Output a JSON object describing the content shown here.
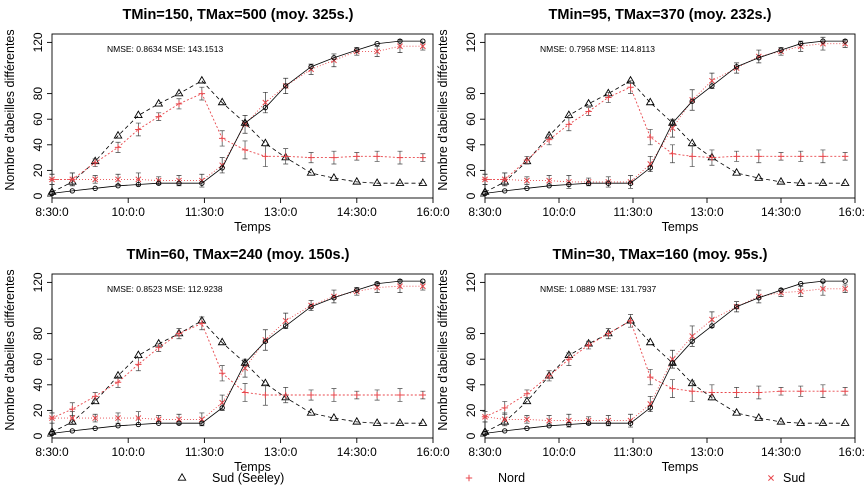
{
  "chart_data": [
    {
      "type": "line",
      "title": "TMin=150, TMax=500 (moy. 325s.)",
      "annotation": "NMSE: 0.8634 MSE: 143.1513",
      "xlabel": "Temps",
      "ylabel": "Nombre d'abeilles différentes",
      "x_ticks": [
        "8:30:0",
        "10:0:0",
        "11:30:0",
        "13:0:0",
        "14:30:0",
        "16:0:0"
      ],
      "y_ticks": [
        "0",
        "20",
        "40",
        "60",
        "80",
        "120"
      ],
      "xlim": [
        8.5,
        16.0
      ],
      "ylim": [
        0,
        125
      ],
      "x": [
        8.5,
        8.9,
        9.35,
        9.8,
        10.2,
        10.6,
        11.0,
        11.45,
        11.85,
        12.3,
        12.7,
        13.1,
        13.6,
        14.05,
        14.5,
        14.9,
        15.35,
        15.8
      ],
      "series": [
        {
          "name": "Sud (Seeley)",
          "marker": "triangle",
          "color": "#000000",
          "values": [
            3,
            11,
            27,
            47,
            63,
            72,
            80,
            90,
            73,
            57,
            41,
            30,
            18,
            14,
            11,
            10,
            10,
            10
          ]
        },
        {
          "name": "Nord",
          "marker": "plus",
          "color": "#e8474c",
          "values": [
            13,
            13,
            26,
            38,
            52,
            62,
            72,
            80,
            45,
            36,
            31,
            31,
            30,
            30,
            31,
            31,
            30,
            30
          ]
        },
        {
          "name": "Sud",
          "marker": "x",
          "color": "#e8474c",
          "values": [
            13,
            13,
            13,
            13,
            13,
            12,
            12,
            12,
            24,
            56,
            73,
            86,
            99,
            106,
            113,
            113,
            117,
            117
          ]
        },
        {
          "name": "",
          "marker": "circle",
          "color": "#000000",
          "values": [
            2,
            4,
            6,
            8,
            9,
            10,
            10,
            10,
            22,
            57,
            69,
            86,
            101,
            108,
            114,
            119,
            121,
            121
          ]
        }
      ]
    },
    {
      "type": "line",
      "title": "TMin=95, TMax=370 (moy. 232s.)",
      "annotation": "NMSE: 0.7958 MSE: 114.8113",
      "xlabel": "Temps",
      "ylabel": "Nombre d'abeilles différentes",
      "x_ticks": [
        "8:30:0",
        "10:0:0",
        "11:30:0",
        "13:0:0",
        "14:30:0",
        "16:0:0"
      ],
      "y_ticks": [
        "0",
        "20",
        "40",
        "60",
        "80",
        "120"
      ],
      "xlim": [
        8.5,
        16.0
      ],
      "ylim": [
        0,
        125
      ],
      "x": [
        8.5,
        8.9,
        9.35,
        9.8,
        10.2,
        10.6,
        11.0,
        11.45,
        11.85,
        12.3,
        12.7,
        13.1,
        13.6,
        14.05,
        14.5,
        14.9,
        15.35,
        15.8
      ],
      "series": [
        {
          "name": "Sud (Seeley)",
          "marker": "triangle",
          "color": "#000000",
          "values": [
            3,
            11,
            27,
            47,
            63,
            72,
            80,
            90,
            73,
            57,
            41,
            30,
            18,
            14,
            11,
            10,
            10,
            10
          ]
        },
        {
          "name": "Nord",
          "marker": "plus",
          "color": "#e8474c",
          "values": [
            13,
            13,
            28,
            44,
            56,
            66,
            77,
            85,
            46,
            33,
            31,
            30,
            31,
            31,
            31,
            31,
            31,
            31
          ]
        },
        {
          "name": "Sud",
          "marker": "x",
          "color": "#e8474c",
          "values": [
            13,
            13,
            12,
            12,
            11,
            11,
            11,
            11,
            25,
            53,
            75,
            90,
            100,
            109,
            113,
            117,
            119,
            119
          ]
        },
        {
          "name": "",
          "marker": "circle",
          "color": "#000000",
          "values": [
            2,
            4,
            6,
            8,
            9,
            10,
            10,
            10,
            22,
            57,
            74,
            86,
            101,
            108,
            114,
            119,
            121,
            121
          ]
        }
      ]
    },
    {
      "type": "line",
      "title": "TMin=60, TMax=240 (moy. 150s.)",
      "annotation": "NMSE: 0.8523 MSE: 112.9238",
      "xlabel": "Temps",
      "ylabel": "Nombre d'abeilles différentes",
      "x_ticks": [
        "8:30:0",
        "10:0:0",
        "11:30:0",
        "13:0:0",
        "14:30:0",
        "16:0:0"
      ],
      "y_ticks": [
        "0",
        "20",
        "40",
        "60",
        "80",
        "120"
      ],
      "xlim": [
        8.5,
        16.0
      ],
      "ylim": [
        0,
        125
      ],
      "x": [
        8.5,
        8.9,
        9.35,
        9.8,
        10.2,
        10.6,
        11.0,
        11.45,
        11.85,
        12.3,
        12.7,
        13.1,
        13.6,
        14.05,
        14.5,
        14.9,
        15.35,
        15.8
      ],
      "series": [
        {
          "name": "Sud (Seeley)",
          "marker": "triangle",
          "color": "#000000",
          "values": [
            3,
            11,
            27,
            47,
            63,
            72,
            80,
            90,
            73,
            57,
            41,
            30,
            18,
            14,
            11,
            10,
            10,
            10
          ]
        },
        {
          "name": "Nord",
          "marker": "plus",
          "color": "#e8474c",
          "values": [
            14,
            21,
            31,
            42,
            56,
            69,
            80,
            88,
            49,
            34,
            32,
            32,
            32,
            32,
            32,
            32,
            32,
            32
          ]
        },
        {
          "name": "Sud",
          "marker": "x",
          "color": "#e8474c",
          "values": [
            14,
            14,
            14,
            14,
            14,
            13,
            13,
            13,
            26,
            53,
            75,
            90,
            102,
            109,
            113,
            116,
            117,
            117
          ]
        },
        {
          "name": "",
          "marker": "circle",
          "color": "#000000",
          "values": [
            2,
            4,
            6,
            8,
            9,
            10,
            10,
            10,
            22,
            57,
            74,
            86,
            101,
            108,
            114,
            119,
            121,
            121
          ]
        }
      ]
    },
    {
      "type": "line",
      "title": "TMin=30, TMax=160 (moy. 95s.)",
      "annotation": "NMSE: 1.0889 MSE: 131.7937",
      "xlabel": "Temps",
      "ylabel": "Nombre d'abeilles différentes",
      "x_ticks": [
        "8:30:0",
        "10:0:0",
        "11:30:0",
        "13:0:0",
        "14:30:0",
        "16:0:0"
      ],
      "y_ticks": [
        "0",
        "20",
        "40",
        "60",
        "80",
        "120"
      ],
      "xlim": [
        8.5,
        16.0
      ],
      "ylim": [
        0,
        125
      ],
      "x": [
        8.5,
        8.9,
        9.35,
        9.8,
        10.2,
        10.6,
        11.0,
        11.45,
        11.85,
        12.3,
        12.7,
        13.1,
        13.6,
        14.05,
        14.5,
        14.9,
        15.35,
        15.8
      ],
      "series": [
        {
          "name": "Sud (Seeley)",
          "marker": "triangle",
          "color": "#000000",
          "values": [
            3,
            11,
            27,
            47,
            63,
            72,
            80,
            90,
            73,
            57,
            41,
            30,
            18,
            14,
            11,
            10,
            10,
            10
          ]
        },
        {
          "name": "Nord",
          "marker": "plus",
          "color": "#e8474c",
          "values": [
            15,
            22,
            33,
            47,
            60,
            71,
            80,
            90,
            46,
            37,
            35,
            34,
            34,
            34,
            35,
            35,
            35,
            35
          ]
        },
        {
          "name": "Sud",
          "marker": "x",
          "color": "#e8474c",
          "values": [
            15,
            13,
            13,
            12,
            12,
            12,
            12,
            12,
            25,
            60,
            78,
            91,
            101,
            109,
            112,
            113,
            115,
            115
          ]
        },
        {
          "name": "",
          "marker": "circle",
          "color": "#000000",
          "values": [
            2,
            4,
            6,
            8,
            9,
            10,
            10,
            10,
            22,
            57,
            74,
            86,
            101,
            108,
            114,
            119,
            121,
            121
          ]
        }
      ]
    }
  ],
  "legend": [
    {
      "label": "Sud (Seeley)",
      "marker": "triangle",
      "color": "#000000"
    },
    {
      "label": "Nord",
      "marker": "plus",
      "color": "#e8474c"
    },
    {
      "label": "Sud",
      "marker": "x",
      "color": "#e8474c"
    }
  ]
}
